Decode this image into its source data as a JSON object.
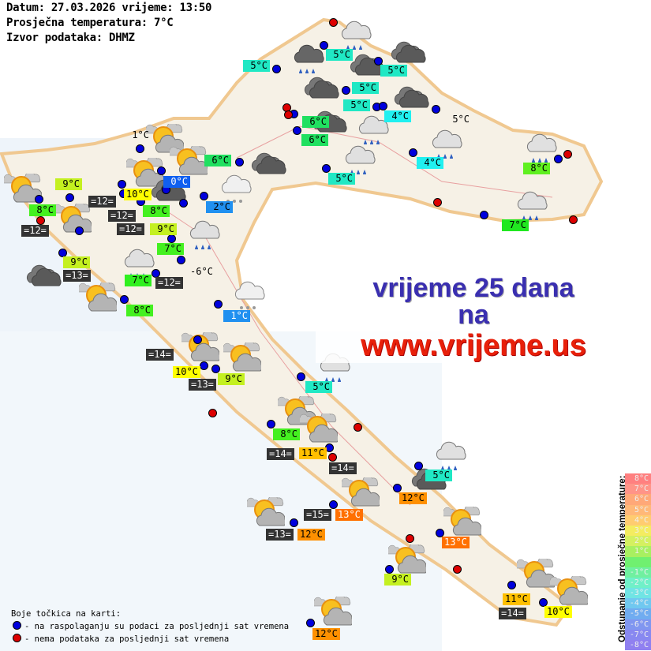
{
  "header": {
    "date_line": "Datum: 27.03.2026 vrijeme: 13:50",
    "avg_line": "Prosječna temperatura: 7°C",
    "source_line": "Izvor podataka: DHMZ"
  },
  "banner": {
    "line1": "vrijeme 25 dana",
    "line2": "na",
    "line3": "www.vrijeme.us"
  },
  "legend": {
    "title": "Boje točkica na karti:",
    "blue_text": "- na raspolaganju su podaci za posljednji sat vremena",
    "red_text": "- nema podataka za posljednji sat vremena",
    "blue_color": "#0000dd",
    "red_color": "#dd0000"
  },
  "scale": {
    "title": "Odstupanje od prosječne temperature:",
    "steps": [
      {
        "label": "8°C",
        "color": "#ff8080"
      },
      {
        "label": "7°C",
        "color": "#ff9488"
      },
      {
        "label": "6°C",
        "color": "#ffa878"
      },
      {
        "label": "5°C",
        "color": "#ffb878"
      },
      {
        "label": "4°C",
        "color": "#ffcc70"
      },
      {
        "label": "3°C",
        "color": "#f4ec60"
      },
      {
        "label": "2°C",
        "color": "#d4f060"
      },
      {
        "label": "1°C",
        "color": "#a8f060"
      },
      {
        "label": "",
        "color": "#70f070"
      },
      {
        "label": "-1°C",
        "color": "#70f0a0"
      },
      {
        "label": "-2°C",
        "color": "#70f0c8"
      },
      {
        "label": "-3°C",
        "color": "#70e4e4"
      },
      {
        "label": "-4°C",
        "color": "#70c8f0"
      },
      {
        "label": "-5°C",
        "color": "#70acf0"
      },
      {
        "label": "-6°C",
        "color": "#8096f0"
      },
      {
        "label": "-7°C",
        "color": "#8888f0"
      },
      {
        "label": "-8°C",
        "color": "#9080f0"
      }
    ]
  },
  "temperature_labels": [
    {
      "text": "1°C",
      "bg": "transparent",
      "fg": "#000"
    },
    {
      "text": "9°C",
      "bg": "#c4f020",
      "fg": "#000"
    },
    {
      "text": "8°C",
      "bg": "#44f020",
      "fg": "#000"
    },
    {
      "text": "=12=",
      "bg": "#333333",
      "fg": "#fff"
    },
    {
      "text": "=12=",
      "bg": "#333333",
      "fg": "#fff"
    },
    {
      "text": "10°C",
      "bg": "#ffff00",
      "fg": "#000"
    },
    {
      "text": "=12=",
      "bg": "#333333",
      "fg": "#fff"
    },
    {
      "text": "8°C",
      "bg": "#44f020",
      "fg": "#000"
    },
    {
      "text": "9°C",
      "bg": "#c4f020",
      "fg": "#000"
    },
    {
      "text": "=12=",
      "bg": "#333333",
      "fg": "#fff"
    },
    {
      "text": "0°C",
      "bg": "#1060f0",
      "fg": "#fff"
    },
    {
      "text": "6°C",
      "bg": "#20e060",
      "fg": "#000"
    },
    {
      "text": "2°C",
      "bg": "#2090f0",
      "fg": "#000"
    },
    {
      "text": "7°C",
      "bg": "#44f020",
      "fg": "#000"
    },
    {
      "text": "9°C",
      "bg": "#c4f020",
      "fg": "#000"
    },
    {
      "text": "=13=",
      "bg": "#333333",
      "fg": "#fff"
    },
    {
      "text": "7°C",
      "bg": "#30f020",
      "fg": "#000"
    },
    {
      "text": "=12=",
      "bg": "#333333",
      "fg": "#fff"
    },
    {
      "text": "-6°C",
      "bg": "transparent",
      "fg": "#000"
    },
    {
      "text": "8°C",
      "bg": "#44f020",
      "fg": "#000"
    },
    {
      "text": "1°C",
      "bg": "#2090f0",
      "fg": "#fff"
    },
    {
      "text": "5°C",
      "bg": "#20e8c4",
      "fg": "#000"
    },
    {
      "text": "5°C",
      "bg": "#20e8c4",
      "fg": "#000"
    },
    {
      "text": "5°C",
      "bg": "#20e8c4",
      "fg": "#000"
    },
    {
      "text": "5°C",
      "bg": "#20e8c4",
      "fg": "#000"
    },
    {
      "text": "5°C",
      "bg": "#20e8c4",
      "fg": "#000"
    },
    {
      "text": "4°C",
      "bg": "#20f0f0",
      "fg": "#000"
    },
    {
      "text": "5°C",
      "bg": "transparent",
      "fg": "#000"
    },
    {
      "text": "6°C",
      "bg": "#20e060",
      "fg": "#000"
    },
    {
      "text": "6°C",
      "bg": "#20e060",
      "fg": "#000"
    },
    {
      "text": "5°C",
      "bg": "#20e8c4",
      "fg": "#000"
    },
    {
      "text": "4°C",
      "bg": "#20f0f0",
      "fg": "#000"
    },
    {
      "text": "8°C",
      "bg": "#60f020",
      "fg": "#000"
    },
    {
      "text": "7°C",
      "bg": "#20e820",
      "fg": "#000"
    },
    {
      "text": "=14=",
      "bg": "#333333",
      "fg": "#fff"
    },
    {
      "text": "10°C",
      "bg": "#ffff00",
      "fg": "#000"
    },
    {
      "text": "=13=",
      "bg": "#333333",
      "fg": "#fff"
    },
    {
      "text": "9°C",
      "bg": "#c4f020",
      "fg": "#000"
    },
    {
      "text": "5°C",
      "bg": "#20e8c4",
      "fg": "#000"
    },
    {
      "text": "8°C",
      "bg": "#44f020",
      "fg": "#000"
    },
    {
      "text": "=14=",
      "bg": "#333333",
      "fg": "#fff"
    },
    {
      "text": "11°C",
      "bg": "#ffc000",
      "fg": "#000"
    },
    {
      "text": "=14=",
      "bg": "#333333",
      "fg": "#fff"
    },
    {
      "text": "5°C",
      "bg": "#20e8c4",
      "fg": "#000"
    },
    {
      "text": "12°C",
      "bg": "#ff9000",
      "fg": "#000"
    },
    {
      "text": "=15=",
      "bg": "#333333",
      "fg": "#fff"
    },
    {
      "text": "13°C",
      "bg": "#ff7000",
      "fg": "#fff"
    },
    {
      "text": "=13=",
      "bg": "#333333",
      "fg": "#fff"
    },
    {
      "text": "12°C",
      "bg": "#ff9000",
      "fg": "#000"
    },
    {
      "text": "13°C",
      "bg": "#ff7000",
      "fg": "#fff"
    },
    {
      "text": "9°C",
      "bg": "#c4f020",
      "fg": "#000"
    },
    {
      "text": "11°C",
      "bg": "#ffc000",
      "fg": "#000"
    },
    {
      "text": "=14=",
      "bg": "#333333",
      "fg": "#fff"
    },
    {
      "text": "10°C",
      "bg": "#ffff00",
      "fg": "#000"
    },
    {
      "text": "12°C",
      "bg": "#ff9000",
      "fg": "#000"
    }
  ],
  "station_dots": {
    "available": 47,
    "unavailable": 12
  },
  "weather_icons": [
    "partly-cloudy",
    "overcast",
    "rain-cloud",
    "dark-rain-cloud",
    "snow-cloud"
  ]
}
